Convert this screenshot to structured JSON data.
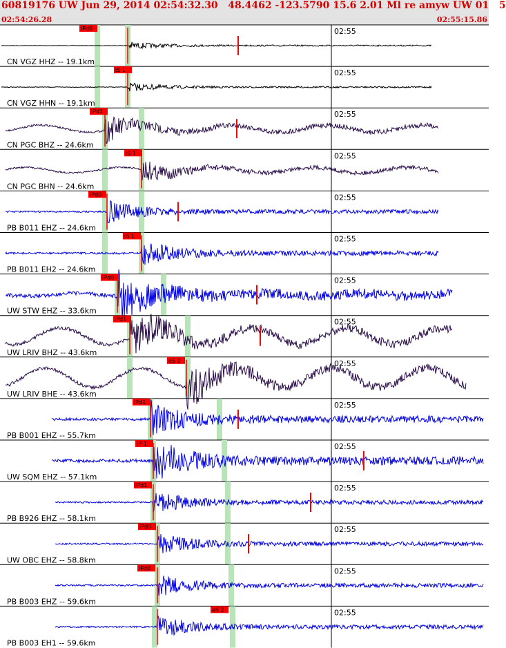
{
  "header": {
    "title": "60819176 UW Jun 29, 2014 02:54:32.30   48.4462 -123.5790 15.6 2.01 Ml re amyw UW 01   5",
    "start_time": "02:54:26.28",
    "end_time": "02:55:15.86"
  },
  "colors": {
    "header_bg": "#e3e3e3",
    "header_text": "#d40000",
    "pick_marker": "#ff0000",
    "phase_window": "#b9e3b9",
    "seis_black": "#000000",
    "seis_purple": "#2a0d4a",
    "seis_blue": "#0000e6"
  },
  "chart_data": {
    "type": "line",
    "x_unit": "time",
    "x_range": [
      "02:54:26.28",
      "02:55:15.86"
    ],
    "gridline_time": "02:55",
    "series": [
      {
        "name": "CN VGZ HHZ -- 19.1km",
        "picks": [
          "iPd0"
        ],
        "color": "#000000"
      },
      {
        "name": "CN VGZ HHN -- 19.1km",
        "picks": [
          "iS 1"
        ],
        "color": "#000000"
      },
      {
        "name": "CN PGC BHZ -- 24.6km",
        "picks": [
          "iPd1"
        ],
        "color": "#2a0d4a"
      },
      {
        "name": "CN PGC BHN -- 24.6km",
        "picks": [
          "iS 1"
        ],
        "color": "#2a0d4a"
      },
      {
        "name": "PB B011 EHZ -- 24.6km",
        "picks": [
          "iPd0"
        ],
        "color": "#0000e6"
      },
      {
        "name": "PB B011 EH2 -- 24.6km",
        "picks": [
          "iS 1"
        ],
        "color": "#0000e6"
      },
      {
        "name": "UW STW EHZ -- 33.6km",
        "picks": [
          "iPd0"
        ],
        "color": "#0000e6"
      },
      {
        "name": "UW LRIV BHZ -- 43.6km",
        "picks": [
          "iPd1"
        ],
        "color": "#2a0d4a"
      },
      {
        "name": "UW LRIV BHE -- 43.6km",
        "picks": [
          "eS 2"
        ],
        "color": "#2a0d4a"
      },
      {
        "name": "PB B001 EHZ -- 55.7km",
        "picks": [
          "iPd1"
        ],
        "color": "#0000e6"
      },
      {
        "name": "UW SQM EHZ -- 57.1km",
        "picks": [
          "iP 1"
        ],
        "color": "#0000e6"
      },
      {
        "name": "PB B926 EHZ -- 58.1km",
        "picks": [
          "iPd1"
        ],
        "color": "#0000e6"
      },
      {
        "name": "UW OBC EHZ -- 58.8km",
        "picks": [
          "iPd0"
        ],
        "color": "#0000e6"
      },
      {
        "name": "PB B003 EHZ -- 59.6km",
        "picks": [
          "iPd0"
        ],
        "color": "#0000e6"
      },
      {
        "name": "PB B003 EH1 -- 59.6km",
        "picks": [
          "eS 2"
        ],
        "color": "#0000e6"
      }
    ]
  }
}
